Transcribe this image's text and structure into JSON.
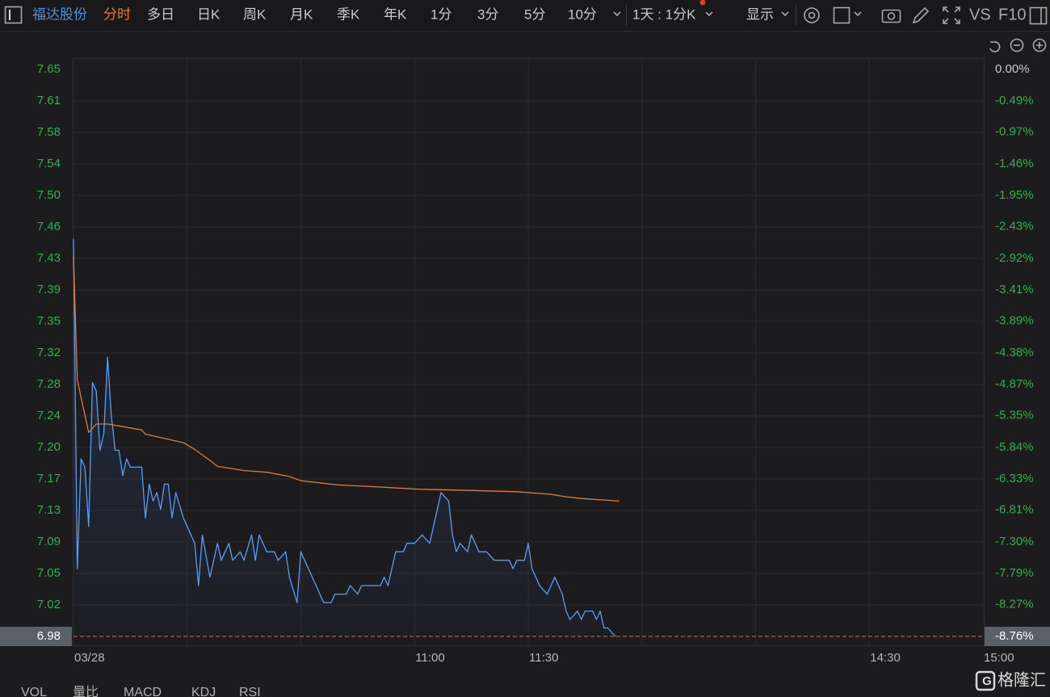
{
  "toolbar": {
    "stock": "福达股份",
    "tabs": [
      "分时",
      "多日",
      "日K",
      "周K",
      "月K",
      "季K",
      "年K",
      "1分",
      "3分",
      "5分",
      "10分"
    ],
    "period": "1天 : 1分K",
    "display": "显示",
    "vs": "VS",
    "f10": "F10"
  },
  "indicator_tabs": [
    "VOL",
    "量比",
    "MACD",
    "KDJ",
    "RSI"
  ],
  "watermark": "格隆汇",
  "chart_data": {
    "type": "line",
    "xlim": [
      0,
      240
    ],
    "xticks": [
      {
        "value": 0,
        "label": "03/28"
      },
      {
        "value": 30,
        "label": null
      },
      {
        "value": 60,
        "label": null
      },
      {
        "value": 90,
        "label": "11:00"
      },
      {
        "value": 120,
        "label": "11:30"
      },
      {
        "value": 150,
        "label": null
      },
      {
        "value": 180,
        "label": null
      },
      {
        "value": 210,
        "label": "14:30"
      },
      {
        "value": 240,
        "label": "15:00"
      }
    ],
    "ylim": [
      6.98,
      7.65
    ],
    "yticks": [
      7.65,
      {
        "value": 7.6128,
        "label": "7.61"
      },
      {
        "value": 7.5756,
        "label": "7.58"
      },
      {
        "value": 7.5383,
        "label": "7.54"
      },
      {
        "value": 7.5011,
        "label": "7.50"
      },
      {
        "value": 7.4639,
        "label": "7.46"
      },
      {
        "value": 7.4267,
        "label": "7.43"
      },
      {
        "value": 7.3894,
        "label": "7.39"
      },
      {
        "value": 7.3522,
        "label": "7.35"
      },
      {
        "value": 7.315,
        "label": "7.32"
      },
      {
        "value": 7.2778,
        "label": "7.28"
      },
      {
        "value": 7.2406,
        "label": "7.24"
      },
      {
        "value": 7.2033,
        "label": "7.20"
      },
      {
        "value": 7.1661,
        "label": "7.17"
      },
      {
        "value": 7.1289,
        "label": "7.13"
      },
      {
        "value": 7.0917,
        "label": "7.09"
      },
      {
        "value": 7.0544,
        "label": "7.05"
      },
      {
        "value": 7.0172,
        "label": "7.02"
      },
      6.98
    ],
    "y2lim": [
      -8.76,
      0
    ],
    "y2ticks": [
      {
        "value": 0,
        "label": "0.00%"
      },
      {
        "value": -0.49,
        "label": "-0.49%"
      },
      {
        "value": -0.97,
        "label": "-0.97%"
      },
      {
        "value": -1.46,
        "label": "-1.46%"
      },
      {
        "value": -1.95,
        "label": "-1.95%"
      },
      {
        "value": -2.43,
        "label": "-2.43%"
      },
      {
        "value": -2.92,
        "label": "-2.92%"
      },
      {
        "value": -3.41,
        "label": "-3.41%"
      },
      {
        "value": -3.89,
        "label": "-3.89%"
      },
      {
        "value": -4.38,
        "label": "-4.38%"
      },
      {
        "value": -4.87,
        "label": "-4.87%"
      },
      {
        "value": -5.35,
        "label": "-5.35%"
      },
      {
        "value": -5.84,
        "label": "-5.84%"
      },
      {
        "value": -6.33,
        "label": "-6.33%"
      },
      {
        "value": -6.81,
        "label": "-6.81%"
      },
      {
        "value": -7.3,
        "label": "-7.30%"
      },
      {
        "value": -7.79,
        "label": "-7.79%"
      },
      {
        "value": -8.27,
        "label": "-8.27%"
      },
      {
        "value": -8.76,
        "label": "-8.76%"
      }
    ],
    "grid": true,
    "series": [
      {
        "color": "#5b9cf5",
        "x": [
          0,
          1,
          2,
          3,
          4,
          5,
          6,
          7,
          8,
          9,
          10,
          11,
          12,
          13,
          14,
          15,
          17,
          18,
          19,
          20,
          21,
          22,
          23,
          24,
          25,
          26,
          27,
          29,
          30,
          32,
          33,
          34,
          36,
          38,
          39,
          41,
          42,
          44,
          45,
          47,
          48,
          49,
          51,
          53,
          54,
          56,
          57,
          59,
          60,
          62,
          64,
          66,
          68,
          69,
          72,
          73,
          75,
          76,
          81,
          82,
          83,
          85,
          87,
          88,
          90,
          92,
          94,
          95,
          96,
          97,
          99,
          100,
          101,
          102,
          104,
          105,
          106,
          107,
          109,
          111,
          115,
          116,
          117,
          119,
          120,
          121,
          122,
          123,
          125,
          126,
          127,
          128,
          129,
          130,
          131,
          133,
          134,
          135,
          137,
          138,
          139,
          140,
          141,
          143
        ],
        "values": [
          7.45,
          7.06,
          7.19,
          7.18,
          7.11,
          7.28,
          7.27,
          7.2,
          7.22,
          7.31,
          7.24,
          7.2,
          7.2,
          7.17,
          7.19,
          7.18,
          7.18,
          7.18,
          7.12,
          7.16,
          7.14,
          7.15,
          7.13,
          7.16,
          7.16,
          7.12,
          7.15,
          7.12,
          7.11,
          7.09,
          7.04,
          7.1,
          7.05,
          7.09,
          7.07,
          7.09,
          7.07,
          7.08,
          7.07,
          7.1,
          7.07,
          7.1,
          7.08,
          7.08,
          7.07,
          7.08,
          7.05,
          7.02,
          7.08,
          7.06,
          7.04,
          7.02,
          7.02,
          7.03,
          7.03,
          7.04,
          7.03,
          7.04,
          7.04,
          7.05,
          7.04,
          7.08,
          7.08,
          7.09,
          7.09,
          7.1,
          7.09,
          7.11,
          7.13,
          7.15,
          7.14,
          7.1,
          7.08,
          7.09,
          7.08,
          7.1,
          7.09,
          7.08,
          7.08,
          7.07,
          7.07,
          7.06,
          7.07,
          7.07,
          7.09,
          7.06,
          7.05,
          7.04,
          7.03,
          7.04,
          7.05,
          7.04,
          7.03,
          7.01,
          7.0,
          7.01,
          7.0,
          7.01,
          7.01,
          7.0,
          7.01,
          6.99,
          6.99,
          6.98
        ]
      },
      {
        "color": "#e07b39",
        "x": [
          0,
          1,
          4,
          6,
          9,
          13,
          18,
          19,
          23,
          29,
          32,
          36,
          38,
          45,
          51,
          57,
          60,
          70,
          79,
          91,
          100,
          117,
          126,
          130,
          134,
          144
        ],
        "values": [
          7.43,
          7.283,
          7.221,
          7.231,
          7.231,
          7.228,
          7.224,
          7.219,
          7.215,
          7.209,
          7.201,
          7.188,
          7.181,
          7.176,
          7.174,
          7.169,
          7.164,
          7.159,
          7.157,
          7.154,
          7.153,
          7.151,
          7.148,
          7.145,
          7.143,
          7.14
        ]
      }
    ]
  }
}
